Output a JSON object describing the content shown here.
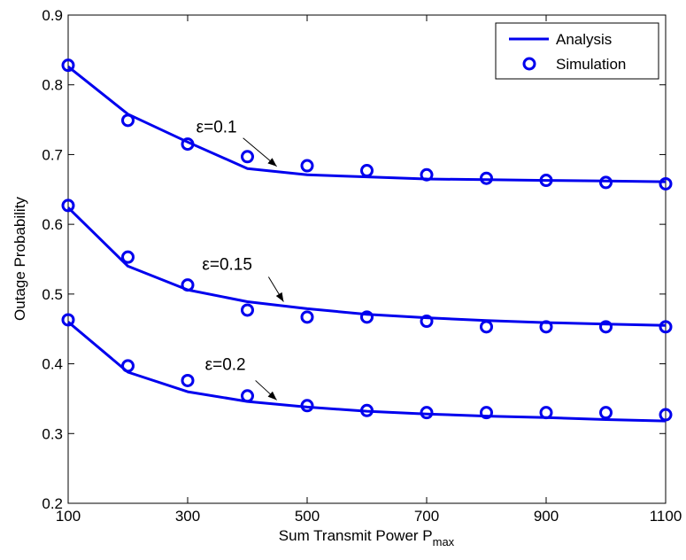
{
  "chart_data": {
    "type": "line",
    "title": "",
    "xlabel": "Sum Transmit Power P",
    "xlabel_sub": "max",
    "ylabel": "Outage Probability",
    "xlim": [
      100,
      1100
    ],
    "ylim": [
      0.2,
      0.9
    ],
    "x_ticks": [
      100,
      300,
      500,
      700,
      900,
      1100
    ],
    "y_ticks": [
      "0.2",
      "0.3",
      "0.4",
      "0.5",
      "0.6",
      "0.7",
      "0.8",
      "0.9"
    ],
    "grid": false,
    "legend": {
      "position": "top-right",
      "entries": [
        {
          "label": "Analysis",
          "marker": "line"
        },
        {
          "label": "Simulation",
          "marker": "circle"
        }
      ]
    },
    "color": "#0000ee",
    "x": [
      100,
      200,
      300,
      400,
      500,
      600,
      700,
      800,
      900,
      1000,
      1100
    ],
    "series": [
      {
        "group": "ε=0.1",
        "analysis": [
          0.826,
          0.758,
          0.718,
          0.68,
          0.671,
          0.668,
          0.665,
          0.664,
          0.663,
          0.662,
          0.661
        ],
        "simulation": [
          0.828,
          0.749,
          0.715,
          0.697,
          0.684,
          0.677,
          0.671,
          0.666,
          0.663,
          0.66,
          0.658
        ]
      },
      {
        "group": "ε=0.15",
        "analysis": [
          0.624,
          0.54,
          0.506,
          0.489,
          0.479,
          0.471,
          0.466,
          0.462,
          0.459,
          0.457,
          0.455
        ],
        "simulation": [
          0.627,
          0.553,
          0.513,
          0.477,
          0.467,
          0.467,
          0.461,
          0.453,
          0.453,
          0.453,
          0.453
        ]
      },
      {
        "group": "ε=0.2",
        "analysis": [
          0.46,
          0.388,
          0.36,
          0.346,
          0.338,
          0.332,
          0.328,
          0.325,
          0.323,
          0.32,
          0.318
        ],
        "simulation": [
          0.463,
          0.397,
          0.376,
          0.354,
          0.34,
          0.333,
          0.33,
          0.33,
          0.33,
          0.33,
          0.327
        ]
      }
    ],
    "annotations": [
      {
        "text": "ε=0.1",
        "at": [
          455,
          0.678
        ]
      },
      {
        "text": "ε=0.15",
        "at": [
          465,
          0.484
        ]
      },
      {
        "text": "ε=0.2",
        "at": [
          455,
          0.343
        ]
      }
    ]
  }
}
